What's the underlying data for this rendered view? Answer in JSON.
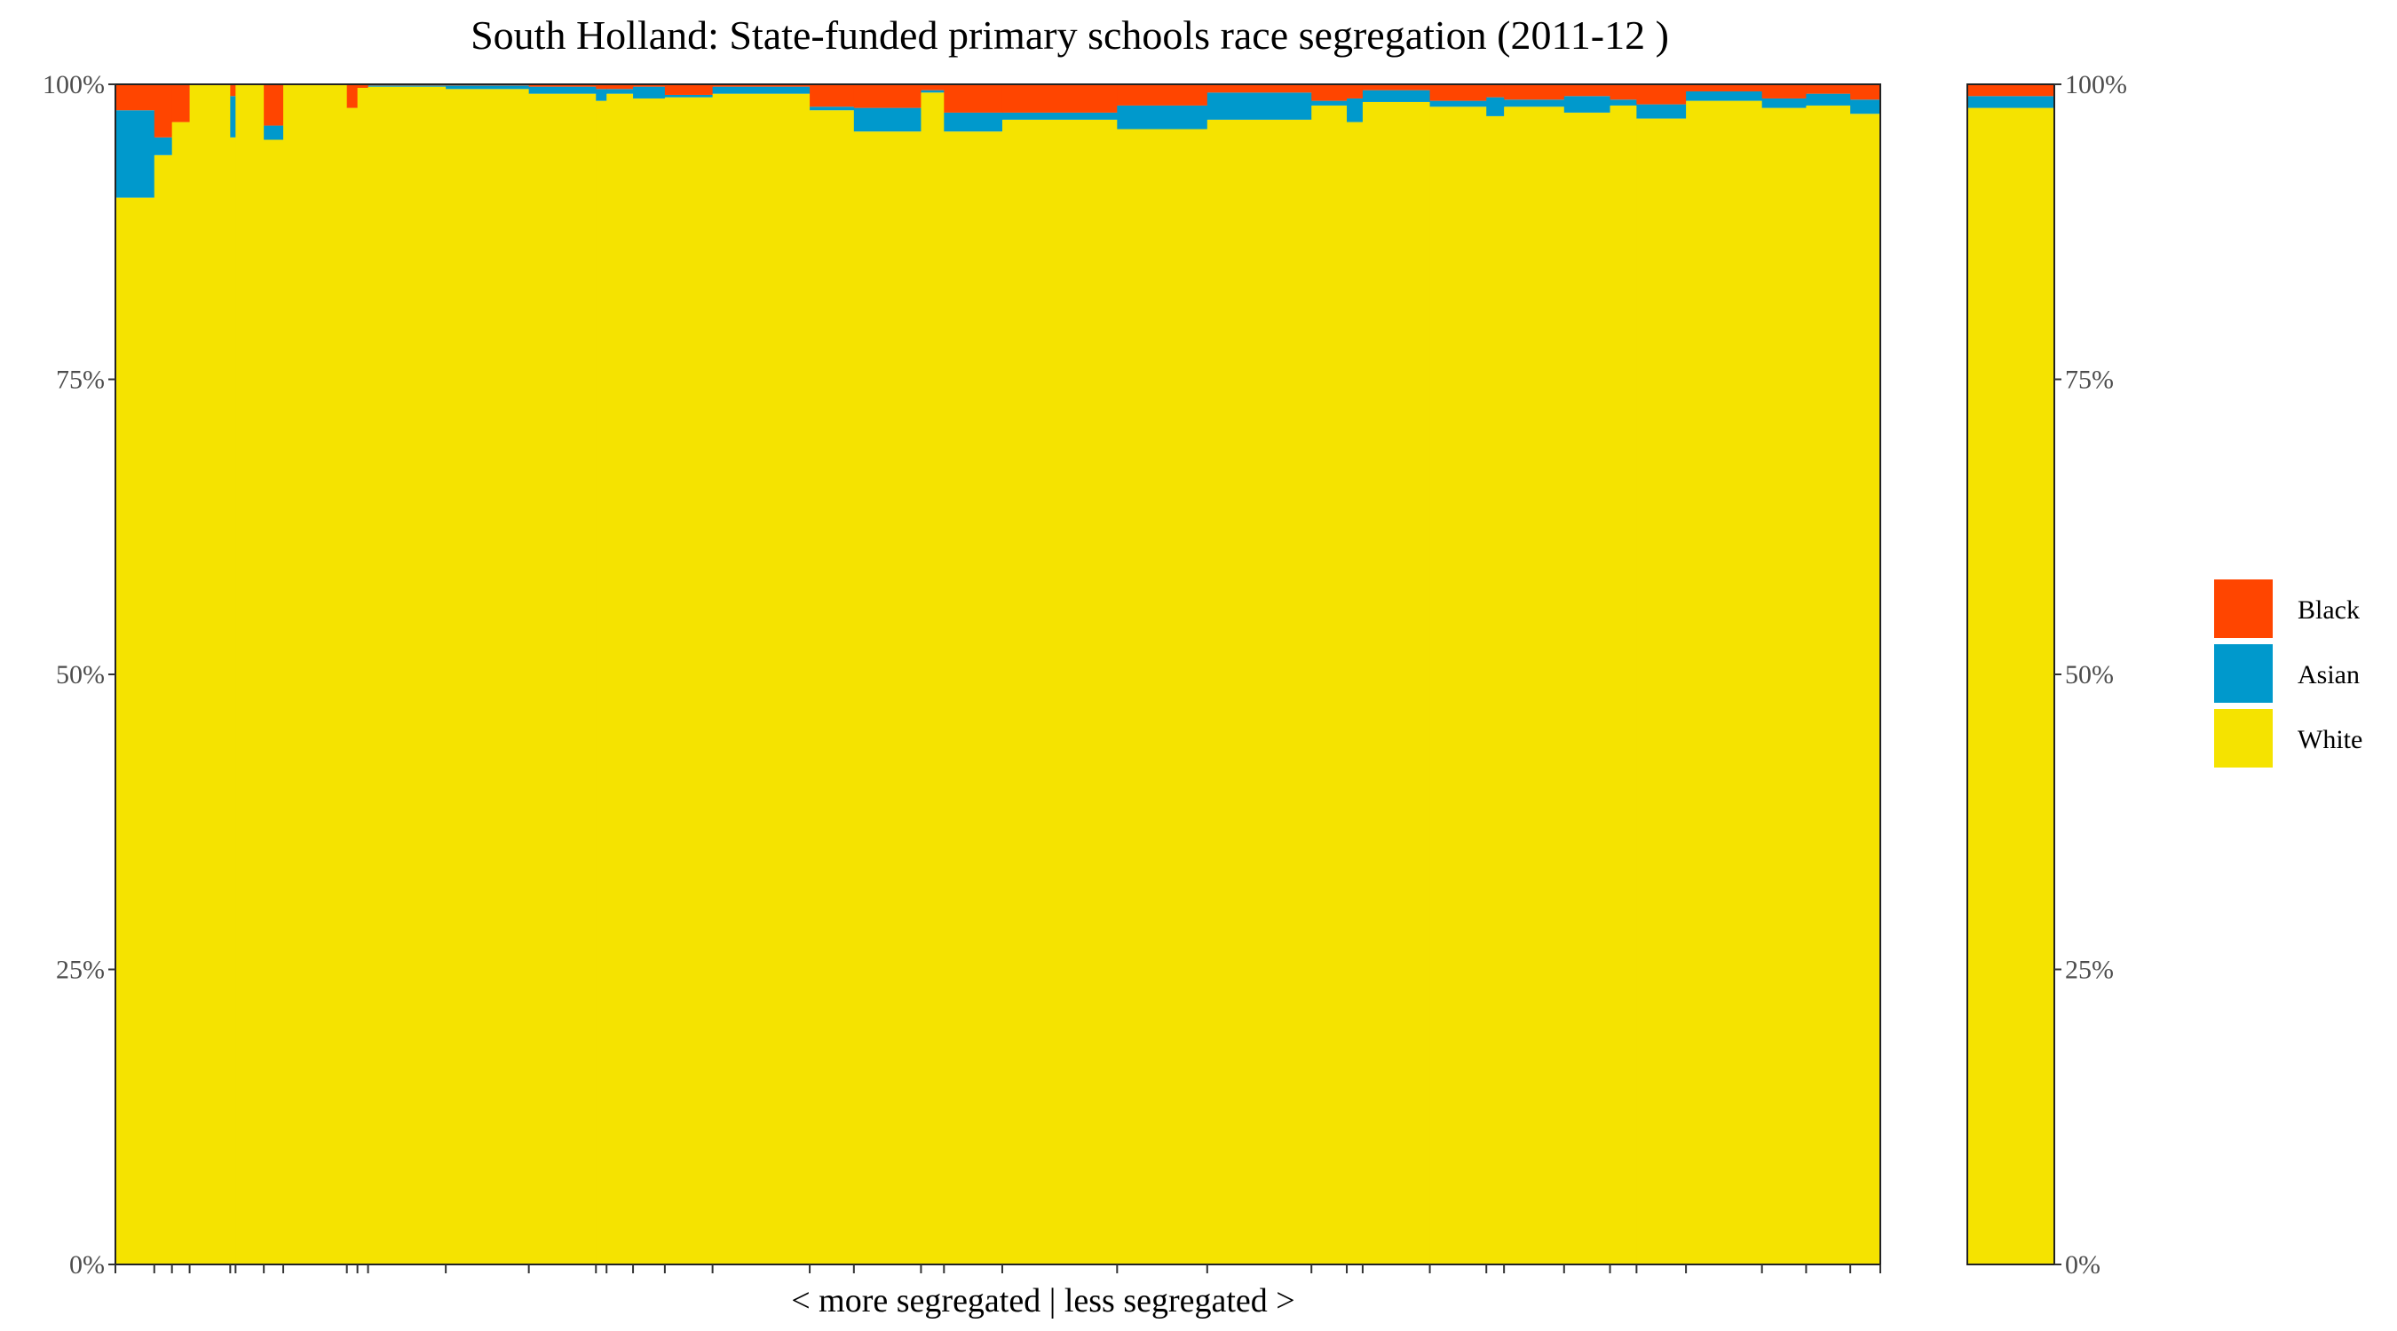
{
  "chart_data": {
    "type": "bar",
    "subtype": "stacked-variable-width",
    "title": "South Holland: State-funded primary schools race segregation (2011-12 )",
    "xlabel": "< more segregated | less segregated >",
    "ylabel": "",
    "ylim": [
      0,
      100
    ],
    "y_ticks": [
      "0%",
      "25%",
      "50%",
      "75%",
      "100%"
    ],
    "secondary_y_axis": true,
    "grid": false,
    "legend_position": "right",
    "colors": {
      "Black": "#FF4500",
      "Asian": "#0099CC",
      "White": "#F5E300"
    },
    "series": [
      {
        "name": "Black"
      },
      {
        "name": "Asian"
      },
      {
        "name": "White"
      }
    ],
    "schools": [
      {
        "width": 2.2,
        "white": 90.4,
        "asian": 7.4,
        "black": 2.2
      },
      {
        "width": 1.0,
        "white": 94.0,
        "asian": 1.5,
        "black": 4.5
      },
      {
        "width": 1.0,
        "white": 96.8,
        "asian": 0.0,
        "black": 3.2
      },
      {
        "width": 2.3,
        "white": 100.0,
        "asian": 0.0,
        "black": 0.0
      },
      {
        "width": 0.3,
        "white": 95.5,
        "asian": 3.5,
        "black": 1.0
      },
      {
        "width": 1.6,
        "white": 100.0,
        "asian": 0.0,
        "black": 0.0
      },
      {
        "width": 1.1,
        "white": 95.3,
        "asian": 1.2,
        "black": 3.5
      },
      {
        "width": 3.6,
        "white": 100.0,
        "asian": 0.0,
        "black": 0.0
      },
      {
        "width": 0.6,
        "white": 98.0,
        "asian": 0.0,
        "black": 2.0
      },
      {
        "width": 0.6,
        "white": 99.7,
        "asian": 0.0,
        "black": 0.3
      },
      {
        "width": 4.4,
        "white": 99.8,
        "asian": 0.1,
        "black": 0.1
      },
      {
        "width": 4.7,
        "white": 99.6,
        "asian": 0.3,
        "black": 0.1
      },
      {
        "width": 3.8,
        "white": 99.2,
        "asian": 0.6,
        "black": 0.2
      },
      {
        "width": 0.6,
        "white": 98.6,
        "asian": 1.0,
        "black": 0.4
      },
      {
        "width": 1.5,
        "white": 99.2,
        "asian": 0.4,
        "black": 0.4
      },
      {
        "width": 1.8,
        "white": 98.8,
        "asian": 1.0,
        "black": 0.2
      },
      {
        "width": 2.7,
        "white": 98.9,
        "asian": 0.2,
        "black": 0.9
      },
      {
        "width": 5.5,
        "white": 99.2,
        "asian": 0.6,
        "black": 0.2
      },
      {
        "width": 2.5,
        "white": 97.8,
        "asian": 0.3,
        "black": 1.9
      },
      {
        "width": 3.8,
        "white": 96.0,
        "asian": 2.0,
        "black": 2.0
      },
      {
        "width": 1.3,
        "white": 99.3,
        "asian": 0.2,
        "black": 0.5
      },
      {
        "width": 3.3,
        "white": 96.0,
        "asian": 1.6,
        "black": 2.4
      },
      {
        "width": 6.5,
        "white": 97.0,
        "asian": 0.6,
        "black": 2.4
      },
      {
        "width": 5.1,
        "white": 96.2,
        "asian": 2.0,
        "black": 1.8
      },
      {
        "width": 5.9,
        "white": 97.0,
        "asian": 2.3,
        "black": 0.7
      },
      {
        "width": 2.0,
        "white": 98.2,
        "asian": 0.4,
        "black": 1.4
      },
      {
        "width": 0.9,
        "white": 96.8,
        "asian": 2.0,
        "black": 1.2
      },
      {
        "width": 3.8,
        "white": 98.5,
        "asian": 1.0,
        "black": 0.5
      },
      {
        "width": 3.2,
        "white": 98.1,
        "asian": 0.5,
        "black": 1.4
      },
      {
        "width": 1.0,
        "white": 97.3,
        "asian": 1.6,
        "black": 1.1
      },
      {
        "width": 3.4,
        "white": 98.1,
        "asian": 0.6,
        "black": 1.3
      },
      {
        "width": 2.6,
        "white": 97.6,
        "asian": 1.4,
        "black": 1.0
      },
      {
        "width": 1.5,
        "white": 98.2,
        "asian": 0.5,
        "black": 1.3
      },
      {
        "width": 2.8,
        "white": 97.1,
        "asian": 1.2,
        "black": 1.7
      },
      {
        "width": 4.3,
        "white": 98.6,
        "asian": 0.8,
        "black": 0.6
      },
      {
        "width": 2.5,
        "white": 98.0,
        "asian": 0.8,
        "black": 1.2
      },
      {
        "width": 2.5,
        "white": 98.2,
        "asian": 1.0,
        "black": 0.8
      },
      {
        "width": 1.7,
        "white": 97.5,
        "asian": 1.2,
        "black": 1.3
      }
    ],
    "average": {
      "white": 98.0,
      "asian": 1.0,
      "black": 1.0
    }
  }
}
